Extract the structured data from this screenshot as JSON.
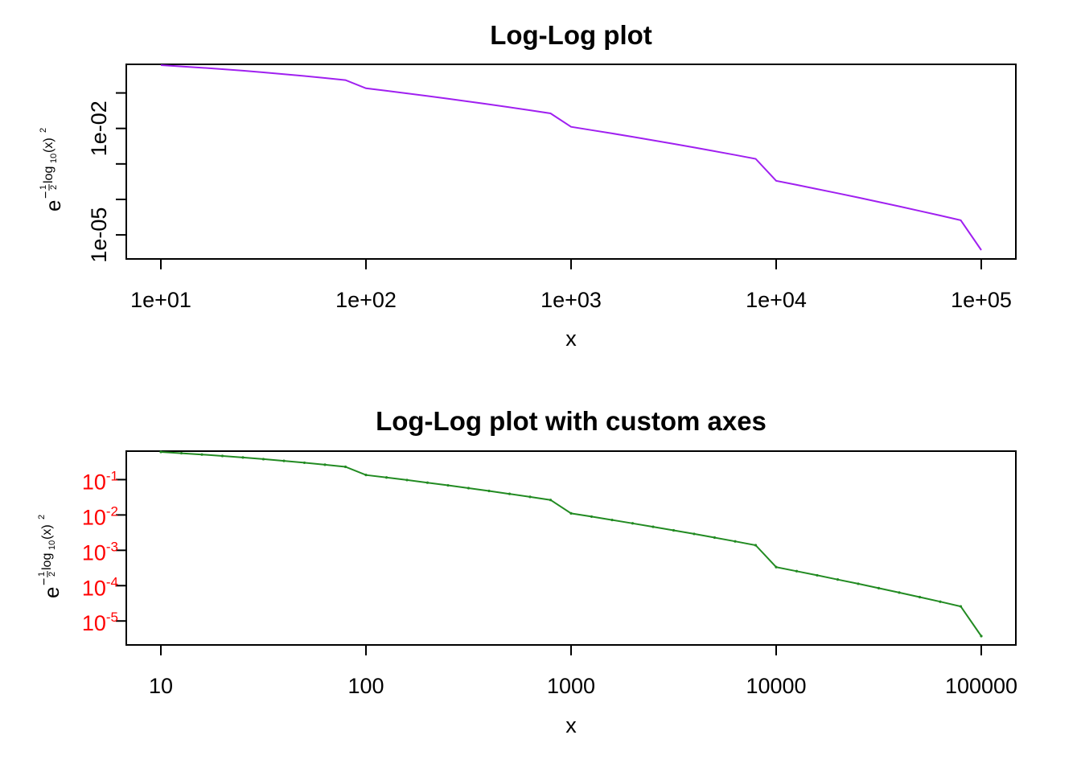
{
  "chart_data": [
    {
      "type": "line",
      "title": "Log-Log plot",
      "xlabel": "x",
      "ylabel": {
        "base": "e",
        "exponent": "-1/2 log10(x)^2",
        "exp_minus": "−",
        "exp_num": "1",
        "exp_den": "2",
        "exp_func": "log",
        "exp_sub": "10",
        "exp_arg": "(x)",
        "exp_pow": "2"
      },
      "x_scale": "log",
      "y_scale": "log",
      "xlim": [
        10,
        100000
      ],
      "ylim": [
        2.1e-06,
        0.64
      ],
      "x_ticks": [
        10,
        100,
        1000,
        10000,
        100000
      ],
      "x_tick_labels": [
        "1e+01",
        "1e+02",
        "1e+03",
        "1e+04",
        "1e+05"
      ],
      "y_ticks": [
        0.1,
        0.01,
        0.001,
        0.0001,
        1e-05
      ],
      "y_tick_labels": [
        "",
        "1e-02",
        "",
        "",
        "1e-05"
      ],
      "line_color": "#a020f0",
      "points_shown": false,
      "x": [
        10,
        12.59,
        15.85,
        19.95,
        25.12,
        31.62,
        39.81,
        50.12,
        63.1,
        79.43,
        100,
        125.9,
        158.5,
        199.5,
        251.2,
        316.2,
        398.1,
        501.2,
        631,
        794.3,
        1000,
        1259,
        1585,
        1995,
        2512,
        3162,
        3981,
        5012,
        6310,
        7943,
        10000,
        12589,
        15849,
        19953,
        25119,
        31623,
        39811,
        50119,
        63096,
        79433,
        100000
      ],
      "y": [
        0.6065,
        0.5599,
        0.5134,
        0.4677,
        0.4232,
        0.3802,
        0.3392,
        0.3004,
        0.264,
        0.2303,
        0.1353,
        0.1151,
        0.0974,
        0.0821,
        0.0689,
        0.0575,
        0.0478,
        0.0395,
        0.0325,
        0.0266,
        0.0111,
        0.00898,
        0.00723,
        0.0058,
        0.00463,
        0.00368,
        0.00291,
        0.00229,
        0.00179,
        0.00139,
        0.000335,
        0.000257,
        0.000196,
        0.000149,
        0.000113,
        8.49e-05,
        6.36e-05,
        4.74e-05,
        3.51e-05,
        2.59e-05,
        3.73e-06
      ]
    },
    {
      "type": "line",
      "title": "Log-Log plot with custom axes",
      "xlabel": "x",
      "ylabel": {
        "base": "e",
        "exponent": "-1/2 log10(x)^2",
        "exp_minus": "−",
        "exp_num": "1",
        "exp_den": "2",
        "exp_func": "log",
        "exp_sub": "10",
        "exp_arg": "(x)",
        "exp_pow": "2"
      },
      "x_scale": "log",
      "y_scale": "log",
      "xlim": [
        10,
        100000
      ],
      "ylim": [
        2.1e-06,
        0.64
      ],
      "x_ticks": [
        10,
        100,
        1000,
        10000,
        100000
      ],
      "x_tick_labels": [
        "10",
        "100",
        "1000",
        "10000",
        "100000"
      ],
      "y_ticks": [
        0.1,
        0.01,
        0.001,
        0.0001,
        1e-05
      ],
      "y_tick_labels": [
        {
          "base": "10",
          "exp": "-1"
        },
        {
          "base": "10",
          "exp": "-2"
        },
        {
          "base": "10",
          "exp": "-3"
        },
        {
          "base": "10",
          "exp": "-4"
        },
        {
          "base": "10",
          "exp": "-5"
        }
      ],
      "y_tick_color": "#ff0000",
      "line_color": "#228b22",
      "points_shown": true,
      "x": [
        10,
        12.59,
        15.85,
        19.95,
        25.12,
        31.62,
        39.81,
        50.12,
        63.1,
        79.43,
        100,
        125.9,
        158.5,
        199.5,
        251.2,
        316.2,
        398.1,
        501.2,
        631,
        794.3,
        1000,
        1259,
        1585,
        1995,
        2512,
        3162,
        3981,
        5012,
        6310,
        7943,
        10000,
        12589,
        15849,
        19953,
        25119,
        31623,
        39811,
        50119,
        63096,
        79433,
        100000
      ],
      "y": [
        0.6065,
        0.5599,
        0.5134,
        0.4677,
        0.4232,
        0.3802,
        0.3392,
        0.3004,
        0.264,
        0.2303,
        0.1353,
        0.1151,
        0.0974,
        0.0821,
        0.0689,
        0.0575,
        0.0478,
        0.0395,
        0.0325,
        0.0266,
        0.0111,
        0.00898,
        0.00723,
        0.0058,
        0.00463,
        0.00368,
        0.00291,
        0.00229,
        0.00179,
        0.00139,
        0.000335,
        0.000257,
        0.000196,
        0.000149,
        0.000113,
        8.49e-05,
        6.36e-05,
        4.74e-05,
        3.51e-05,
        2.59e-05,
        3.73e-06
      ]
    }
  ]
}
